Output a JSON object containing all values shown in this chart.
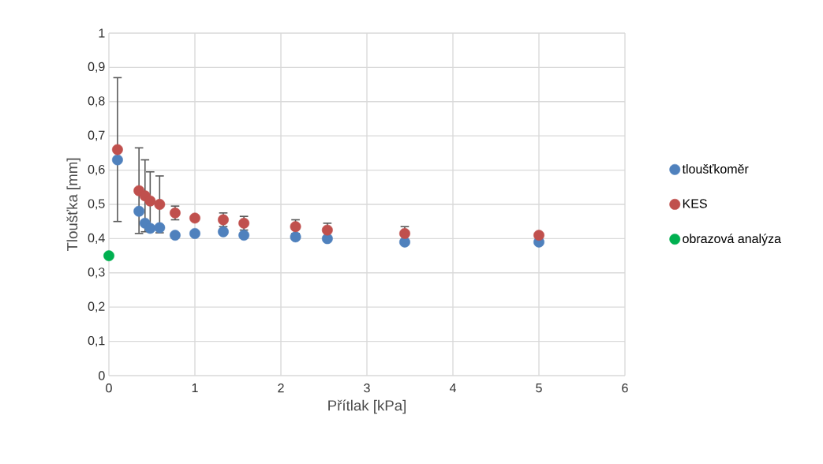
{
  "chart_data": {
    "type": "scatter",
    "xlabel": "Přítlak [kPa]",
    "ylabel": "Tloušťka [mm]",
    "series": [
      {
        "name": "tloušťkoměr",
        "color": "#4f81bd",
        "x": [
          0.1,
          0.35,
          0.42,
          0.48,
          0.59,
          0.77,
          1.0,
          1.33,
          1.57,
          2.17,
          2.54,
          3.44,
          5.0
        ],
        "values": [
          0.63,
          0.48,
          0.445,
          0.43,
          0.432,
          0.41,
          0.415,
          0.42,
          0.41,
          0.405,
          0.4,
          0.39,
          0.39
        ]
      },
      {
        "name": "KES",
        "color": "#c0504d",
        "x": [
          0.1,
          0.35,
          0.42,
          0.48,
          0.59,
          0.77,
          1.0,
          1.33,
          1.57,
          2.17,
          2.54,
          3.44,
          5.0
        ],
        "values": [
          0.66,
          0.54,
          0.525,
          0.51,
          0.5,
          0.475,
          0.46,
          0.455,
          0.445,
          0.435,
          0.425,
          0.415,
          0.41
        ],
        "errors": [
          0.21,
          0.125,
          0.105,
          0.085,
          0.083,
          0.02,
          null,
          0.02,
          0.02,
          0.02,
          0.02,
          0.02,
          null
        ]
      },
      {
        "name": "obrazová analýza",
        "color": "#00b050",
        "x": [
          0
        ],
        "values": [
          0.35
        ]
      }
    ],
    "xlim": [
      0,
      6
    ],
    "xticks": [
      0,
      1,
      2,
      3,
      4,
      5,
      6
    ],
    "ylim": [
      0,
      1
    ],
    "yticks": [
      0,
      {
        "value": 0.1,
        "label": "0,1"
      },
      {
        "value": 0.2,
        "label": "0,2"
      },
      {
        "value": 0.3,
        "label": "0,3"
      },
      {
        "value": 0.4,
        "label": "0,4"
      },
      {
        "value": 0.5,
        "label": "0,5"
      },
      {
        "value": 0.6,
        "label": "0,6"
      },
      {
        "value": 0.7,
        "label": "0,7"
      },
      {
        "value": 0.8,
        "label": "0,8"
      },
      {
        "value": 0.9,
        "label": "0,9"
      },
      1
    ],
    "grid": true,
    "legend": "right",
    "marker": "circle"
  }
}
